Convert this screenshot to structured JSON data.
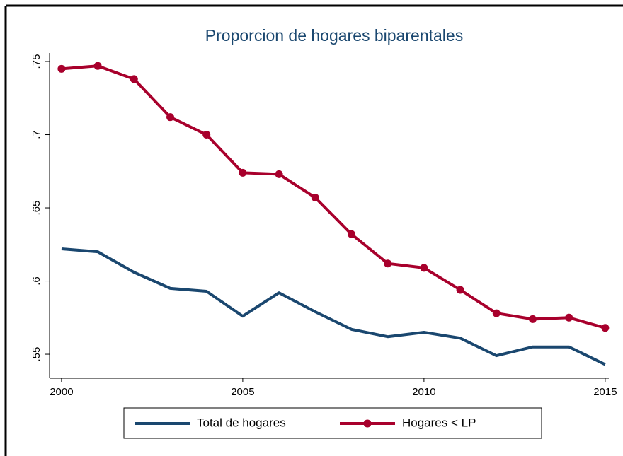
{
  "chart_data": {
    "type": "line",
    "title": "Proporcion de hogares biparentales",
    "x": [
      2000,
      2001,
      2002,
      2003,
      2004,
      2005,
      2006,
      2007,
      2008,
      2009,
      2010,
      2011,
      2012,
      2013,
      2014,
      2015
    ],
    "series": [
      {
        "name": "Total de hogares",
        "color": "#1a476f",
        "marker": false,
        "values": [
          0.622,
          0.62,
          0.606,
          0.595,
          0.593,
          0.576,
          0.592,
          0.579,
          0.567,
          0.562,
          0.565,
          0.561,
          0.549,
          0.555,
          0.555,
          0.543
        ]
      },
      {
        "name": "Hogares < LP",
        "color": "#a8002c",
        "marker": true,
        "values": [
          0.745,
          0.747,
          0.738,
          0.712,
          0.7,
          0.674,
          0.673,
          0.657,
          0.632,
          0.612,
          0.609,
          0.594,
          0.578,
          0.574,
          0.575,
          0.568
        ]
      }
    ],
    "xlim": [
      1999.67,
      2015.1
    ],
    "xticks": [
      2000,
      2005,
      2010,
      2015
    ],
    "ylim": [
      0.5336,
      0.7558
    ],
    "yticks": [
      {
        "value": 0.55,
        "label": ".55"
      },
      {
        "value": 0.6,
        "label": ".6"
      },
      {
        "value": 0.65,
        "label": ".65"
      },
      {
        "value": 0.7,
        "label": ".7"
      },
      {
        "value": 0.75,
        "label": ".75"
      }
    ],
    "grid": false,
    "legend": "bottom"
  }
}
